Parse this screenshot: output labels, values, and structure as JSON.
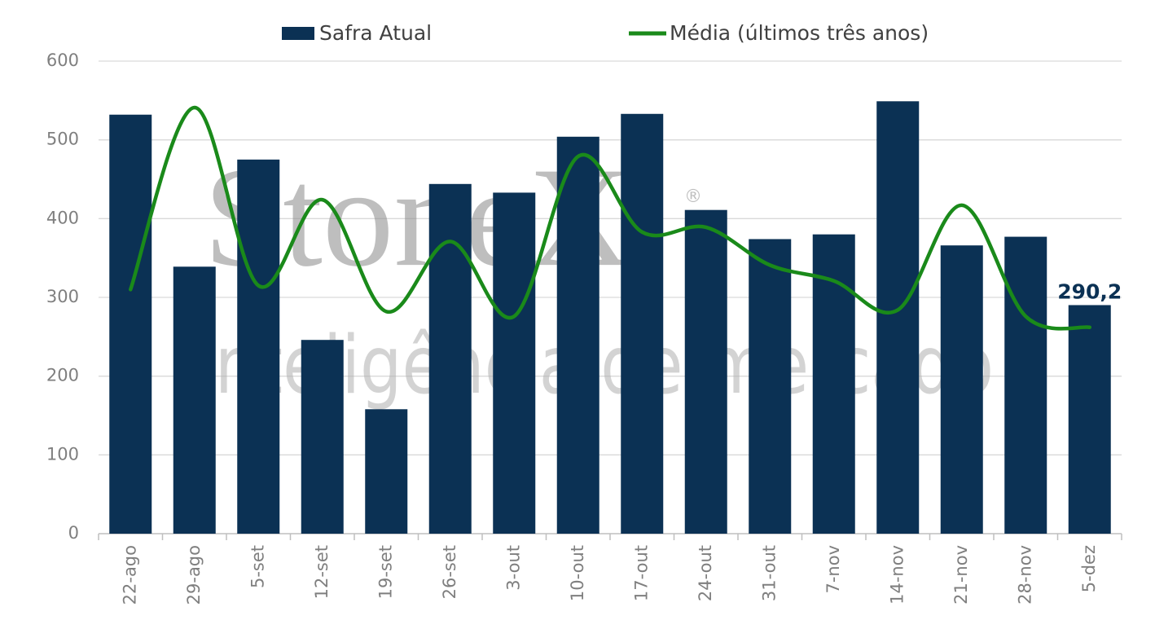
{
  "chart_data": {
    "type": "bar_line",
    "categories": [
      "22-ago",
      "29-ago",
      "5-set",
      "12-set",
      "19-set",
      "26-set",
      "3-out",
      "10-out",
      "17-out",
      "24-out",
      "31-out",
      "7-nov",
      "14-nov",
      "21-nov",
      "28-nov",
      "5-dez"
    ],
    "series": [
      {
        "name": "Safra Atual",
        "type": "bar",
        "color": "#0b3154",
        "values": [
          532,
          339,
          475,
          246,
          158,
          444,
          433,
          504,
          533,
          411,
          374,
          380,
          549,
          366,
          377,
          290.2
        ],
        "value_labels": [
          null,
          null,
          null,
          null,
          null,
          null,
          null,
          null,
          null,
          null,
          null,
          null,
          null,
          null,
          null,
          "290,2"
        ]
      },
      {
        "name": "Média (últimos três anos)",
        "type": "line",
        "smooth": true,
        "color": "#1a8a1a",
        "values": [
          310,
          541,
          315,
          424,
          282,
          371,
          276,
          479,
          383,
          389,
          341,
          321,
          284,
          417,
          276,
          262
        ]
      }
    ],
    "ylim": [
      0,
      600
    ],
    "yticks": [
      0,
      100,
      200,
      300,
      400,
      500,
      600
    ],
    "grid": true,
    "legend": "top",
    "watermark": [
      "StoneX",
      "®",
      "Inteligência de mercado"
    ]
  }
}
